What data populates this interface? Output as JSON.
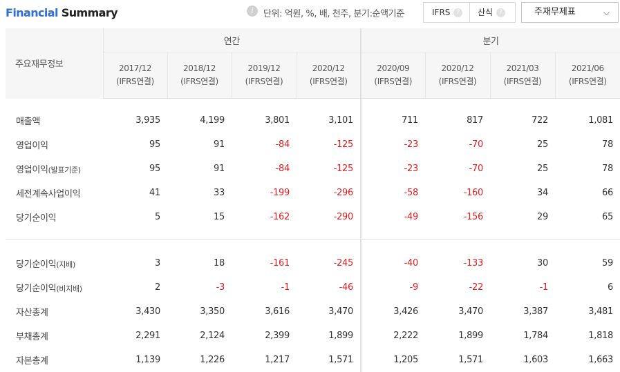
{
  "header": {
    "title_part1": "Financial",
    "title_part2": "Summary",
    "info_icon": "info-icon",
    "unit_text": "단위: 억원, %, 배, 천주, 분기:순액기준",
    "toggle": {
      "ifrs_label": "IFRS",
      "sansik_label": "산식",
      "help_glyph": "?"
    },
    "select": {
      "value": "주재무제표",
      "chevron": "⌵"
    }
  },
  "table": {
    "corner_label": "주요재무정보",
    "groups": {
      "annual": "연간",
      "quarterly": "분기"
    },
    "periods": [
      {
        "date": "2017/12",
        "basis": "(IFRS연결)"
      },
      {
        "date": "2018/12",
        "basis": "(IFRS연결)"
      },
      {
        "date": "2019/12",
        "basis": "(IFRS연결)"
      },
      {
        "date": "2020/12",
        "basis": "(IFRS연결)"
      },
      {
        "date": "2020/09",
        "basis": "(IFRS연결)"
      },
      {
        "date": "2020/12",
        "basis": "(IFRS연결)"
      },
      {
        "date": "2021/03",
        "basis": "(IFRS연결)"
      },
      {
        "date": "2021/06",
        "basis": "(IFRS연결)"
      }
    ],
    "rows": [
      {
        "label": "매출액",
        "sub": "",
        "values": [
          "3,935",
          "4,199",
          "3,801",
          "3,101",
          "711",
          "817",
          "722",
          "1,081"
        ]
      },
      {
        "label": "영업이익",
        "sub": "",
        "values": [
          "95",
          "91",
          "-84",
          "-125",
          "-23",
          "-70",
          "25",
          "78"
        ]
      },
      {
        "label": "영업이익",
        "sub": "(발표기준)",
        "values": [
          "95",
          "91",
          "-84",
          "-125",
          "-23",
          "-70",
          "25",
          "78"
        ]
      },
      {
        "label": "세전계속사업이익",
        "sub": "",
        "values": [
          "41",
          "33",
          "-199",
          "-296",
          "-58",
          "-160",
          "34",
          "66"
        ]
      },
      {
        "label": "당기순이익",
        "sub": "",
        "values": [
          "5",
          "15",
          "-162",
          "-290",
          "-49",
          "-156",
          "29",
          "65"
        ]
      },
      {
        "label": "당기순이익",
        "sub": "(지배)",
        "values": [
          "3",
          "18",
          "-161",
          "-245",
          "-40",
          "-133",
          "30",
          "59"
        ]
      },
      {
        "label": "당기순이익",
        "sub": "(비지배)",
        "values": [
          "2",
          "-3",
          "-1",
          "-46",
          "-9",
          "-22",
          "-1",
          "6"
        ]
      },
      {
        "label": "자산총계",
        "sub": "",
        "values": [
          "3,430",
          "3,350",
          "3,616",
          "3,470",
          "3,426",
          "3,470",
          "3,387",
          "3,481"
        ]
      },
      {
        "label": "부채총계",
        "sub": "",
        "values": [
          "2,291",
          "2,124",
          "2,399",
          "1,899",
          "2,222",
          "1,899",
          "1,784",
          "1,818"
        ]
      },
      {
        "label": "자본총계",
        "sub": "",
        "values": [
          "1,139",
          "1,226",
          "1,217",
          "1,571",
          "1,205",
          "1,571",
          "1,603",
          "1,663"
        ]
      }
    ]
  },
  "colors": {
    "accent": "#2f6fd0",
    "negative": "#e02020",
    "header_bg": "#f6f6f6"
  }
}
